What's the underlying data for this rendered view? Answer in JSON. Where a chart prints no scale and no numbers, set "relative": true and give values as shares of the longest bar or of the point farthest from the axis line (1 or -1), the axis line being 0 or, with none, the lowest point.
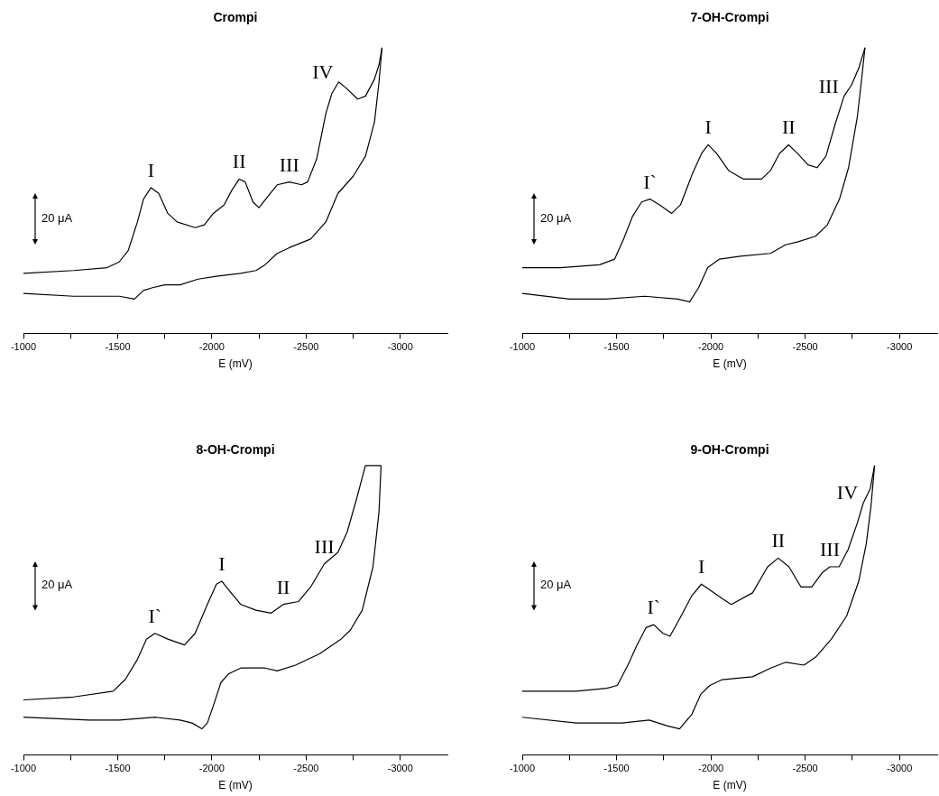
{
  "chart_data": [
    {
      "type": "line",
      "title": "Crompi",
      "xlabel": "E (mV)",
      "relative": true,
      "xlim": [
        -1000,
        -3250
      ],
      "xticks": [
        -1000,
        {
          "value": -1250,
          "label": null
        },
        -1500,
        {
          "value": -1750,
          "label": null
        },
        -2000,
        {
          "value": -2250,
          "label": null
        },
        -2500,
        {
          "value": -2750,
          "label": null
        },
        -3000
      ],
      "series": [
        {
          "color": "#000000",
          "x": [
            -1000,
            -1266,
            -1444,
            -1508,
            -1556,
            -1605,
            -1637,
            -1677,
            -1718,
            -1766,
            -1815,
            -1911,
            -1960,
            -2008,
            -2065,
            -2105,
            -2145,
            -2177,
            -2218,
            -2250,
            -2298,
            -2347,
            -2411,
            -2476,
            -2508,
            -2556,
            -2605,
            -2637,
            -2673,
            -2710,
            -2774,
            -2815,
            -2863,
            -2887,
            -2903
          ],
          "values": [
            0.21,
            0.22,
            0.23,
            0.25,
            0.29,
            0.39,
            0.47,
            0.51,
            0.49,
            0.42,
            0.39,
            0.37,
            0.38,
            0.42,
            0.45,
            0.5,
            0.54,
            0.53,
            0.46,
            0.44,
            0.48,
            0.52,
            0.53,
            0.52,
            0.53,
            0.61,
            0.77,
            0.84,
            0.88,
            0.86,
            0.82,
            0.83,
            0.89,
            0.94,
            1
          ]
        },
        {
          "color": "#000000",
          "x": [
            -2903,
            -2887,
            -2863,
            -2815,
            -2750,
            -2669,
            -2605,
            -2524,
            -2411,
            -2347,
            -2282,
            -2234,
            -2153,
            -2024,
            -1927,
            -1831,
            -1750,
            -1685,
            -1637,
            -1589,
            -1508,
            -1266,
            -1000
          ],
          "values": [
            1,
            0.88,
            0.74,
            0.62,
            0.55,
            0.49,
            0.39,
            0.33,
            0.3,
            0.28,
            0.24,
            0.22,
            0.21,
            0.2,
            0.19,
            0.17,
            0.17,
            0.16,
            0.15,
            0.12,
            0.13,
            0.13,
            0.14
          ]
        }
      ],
      "annotations": [
        "20 μA",
        {
          "text": "I",
          "x": -1677,
          "y": 0.51
        },
        {
          "text": "II",
          "x": -2145,
          "y": 0.54
        },
        {
          "text": "III",
          "x": -2411,
          "y": 0.53
        },
        {
          "text": "IV",
          "x": -2673,
          "y": 0.88
        }
      ]
    },
    {
      "type": "line",
      "title": "7-OH-Crompi",
      "xlabel": "E (mV)",
      "relative": true,
      "xlim": [
        -1000,
        -3200
      ],
      "xticks": [
        -1000,
        {
          "value": -1250,
          "label": null
        },
        -1500,
        {
          "value": -1750,
          "label": null
        },
        -2000,
        {
          "value": -2250,
          "label": null
        },
        -2500,
        {
          "value": -2750,
          "label": null
        },
        -3000
      ],
      "series": [
        {
          "color": "#000000",
          "x": [
            -1000,
            -1203,
            -1410,
            -1490,
            -1537,
            -1585,
            -1633,
            -1677,
            -1728,
            -1792,
            -1839,
            -1903,
            -1951,
            -1986,
            -2030,
            -2094,
            -2173,
            -2269,
            -2316,
            -2364,
            -2412,
            -2459,
            -2515,
            -2563,
            -2610,
            -2658,
            -2706,
            -2746,
            -2785,
            -2817
          ],
          "values": [
            0.23,
            0.23,
            0.24,
            0.26,
            0.33,
            0.41,
            0.46,
            0.47,
            0.45,
            0.42,
            0.45,
            0.56,
            0.63,
            0.66,
            0.63,
            0.57,
            0.54,
            0.54,
            0.57,
            0.63,
            0.66,
            0.63,
            0.59,
            0.58,
            0.62,
            0.73,
            0.83,
            0.87,
            0.93,
            1
          ]
        },
        {
          "color": "#000000",
          "x": [
            -2817,
            -2801,
            -2777,
            -2730,
            -2682,
            -2618,
            -2555,
            -2459,
            -2396,
            -2316,
            -2157,
            -2046,
            -1983,
            -1935,
            -1887,
            -1824,
            -1649,
            -1442,
            -1251,
            -1000
          ],
          "values": [
            1,
            0.9,
            0.76,
            0.58,
            0.47,
            0.38,
            0.34,
            0.32,
            0.31,
            0.28,
            0.27,
            0.26,
            0.23,
            0.16,
            0.11,
            0.12,
            0.13,
            0.12,
            0.12,
            0.14
          ]
        }
      ],
      "annotations": [
        "20 μA",
        {
          "text": "I`",
          "x": -1677,
          "y": 0.47
        },
        {
          "text": "I",
          "x": -1986,
          "y": 0.66
        },
        {
          "text": "II",
          "x": -2412,
          "y": 0.66
        },
        {
          "text": "III",
          "x": -2706,
          "y": 0.83
        }
      ]
    },
    {
      "type": "line",
      "title": "8-OH-Crompi",
      "xlabel": "E (mV)",
      "relative": true,
      "xlim": [
        -1000,
        -3250
      ],
      "xticks": [
        -1000,
        {
          "value": -1250,
          "label": null
        },
        -1500,
        {
          "value": -1750,
          "label": null
        },
        -2000,
        {
          "value": -2250,
          "label": null
        },
        -2500,
        {
          "value": -2750,
          "label": null
        },
        -3000
      ],
      "series": [
        {
          "color": "#000000",
          "x": [
            -1000,
            -1266,
            -1476,
            -1540,
            -1605,
            -1653,
            -1698,
            -1766,
            -1855,
            -1911,
            -1976,
            -2024,
            -2053,
            -2089,
            -2153,
            -2234,
            -2315,
            -2379,
            -2460,
            -2524,
            -2597,
            -2669,
            -2718,
            -2766,
            -2815,
            -2898
          ],
          "values": [
            0.19,
            0.2,
            0.22,
            0.26,
            0.33,
            0.4,
            0.42,
            0.4,
            0.38,
            0.42,
            0.52,
            0.59,
            0.6,
            0.57,
            0.52,
            0.5,
            0.49,
            0.52,
            0.53,
            0.58,
            0.66,
            0.7,
            0.77,
            0.88,
            1,
            1
          ]
        },
        {
          "color": "#000000",
          "x": [
            -2898,
            -2887,
            -2855,
            -2798,
            -2734,
            -2685,
            -2573,
            -2444,
            -2347,
            -2282,
            -2153,
            -2089,
            -2048,
            -2008,
            -1976,
            -1947,
            -1895,
            -1831,
            -1702,
            -1508,
            -1347,
            -1000
          ],
          "values": [
            1,
            0.84,
            0.65,
            0.5,
            0.43,
            0.4,
            0.35,
            0.31,
            0.29,
            0.3,
            0.3,
            0.28,
            0.25,
            0.17,
            0.11,
            0.09,
            0.11,
            0.12,
            0.13,
            0.12,
            0.12,
            0.13
          ]
        }
      ],
      "annotations": [
        "20 μA",
        {
          "text": "I`",
          "x": -1698,
          "y": 0.42
        },
        {
          "text": "I",
          "x": -2053,
          "y": 0.6
        },
        {
          "text": "II",
          "x": -2379,
          "y": 0.52
        },
        {
          "text": "III",
          "x": -2597,
          "y": 0.66
        }
      ]
    },
    {
      "type": "line",
      "title": "9-OH-Crompi",
      "xlabel": "E (mV)",
      "relative": true,
      "xlim": [
        -1000,
        -3200
      ],
      "xticks": [
        -1000,
        {
          "value": -1250,
          "label": null
        },
        -1500,
        {
          "value": -1750,
          "label": null
        },
        -2000,
        {
          "value": -2250,
          "label": null
        },
        -2500,
        {
          "value": -2750,
          "label": null
        },
        -3000
      ],
      "series": [
        {
          "color": "#000000",
          "x": [
            -1000,
            -1287,
            -1448,
            -1504,
            -1560,
            -1609,
            -1657,
            -1697,
            -1746,
            -1783,
            -1834,
            -1899,
            -1950,
            -1995,
            -2060,
            -2108,
            -2221,
            -2301,
            -2357,
            -2414,
            -2478,
            -2535,
            -2591,
            -2631,
            -2680,
            -2728,
            -2776,
            -2808,
            -2845,
            -2868
          ],
          "values": [
            0.22,
            0.22,
            0.23,
            0.24,
            0.31,
            0.38,
            0.44,
            0.45,
            0.42,
            0.41,
            0.47,
            0.55,
            0.59,
            0.57,
            0.54,
            0.52,
            0.56,
            0.65,
            0.68,
            0.65,
            0.58,
            0.58,
            0.63,
            0.65,
            0.65,
            0.71,
            0.8,
            0.87,
            0.92,
            1
          ]
        },
        {
          "color": "#000000",
          "x": [
            -2868,
            -2849,
            -2824,
            -2784,
            -2720,
            -2639,
            -2559,
            -2494,
            -2398,
            -2317,
            -2221,
            -2060,
            -1995,
            -1947,
            -1899,
            -1834,
            -1770,
            -1673,
            -1528,
            -1287,
            -1000
          ],
          "values": [
            1,
            0.86,
            0.73,
            0.6,
            0.48,
            0.4,
            0.34,
            0.31,
            0.32,
            0.3,
            0.27,
            0.26,
            0.24,
            0.21,
            0.14,
            0.09,
            0.1,
            0.12,
            0.11,
            0.11,
            0.13
          ]
        }
      ],
      "annotations": [
        "20 μA",
        {
          "text": "I`",
          "x": -1697,
          "y": 0.45
        },
        {
          "text": "I",
          "x": -1950,
          "y": 0.59
        },
        {
          "text": "II",
          "x": -2357,
          "y": 0.68
        },
        {
          "text": "III",
          "x": -2631,
          "y": 0.65
        },
        {
          "text": "IV",
          "x": -2808,
          "y": 0.87
        }
      ]
    }
  ]
}
